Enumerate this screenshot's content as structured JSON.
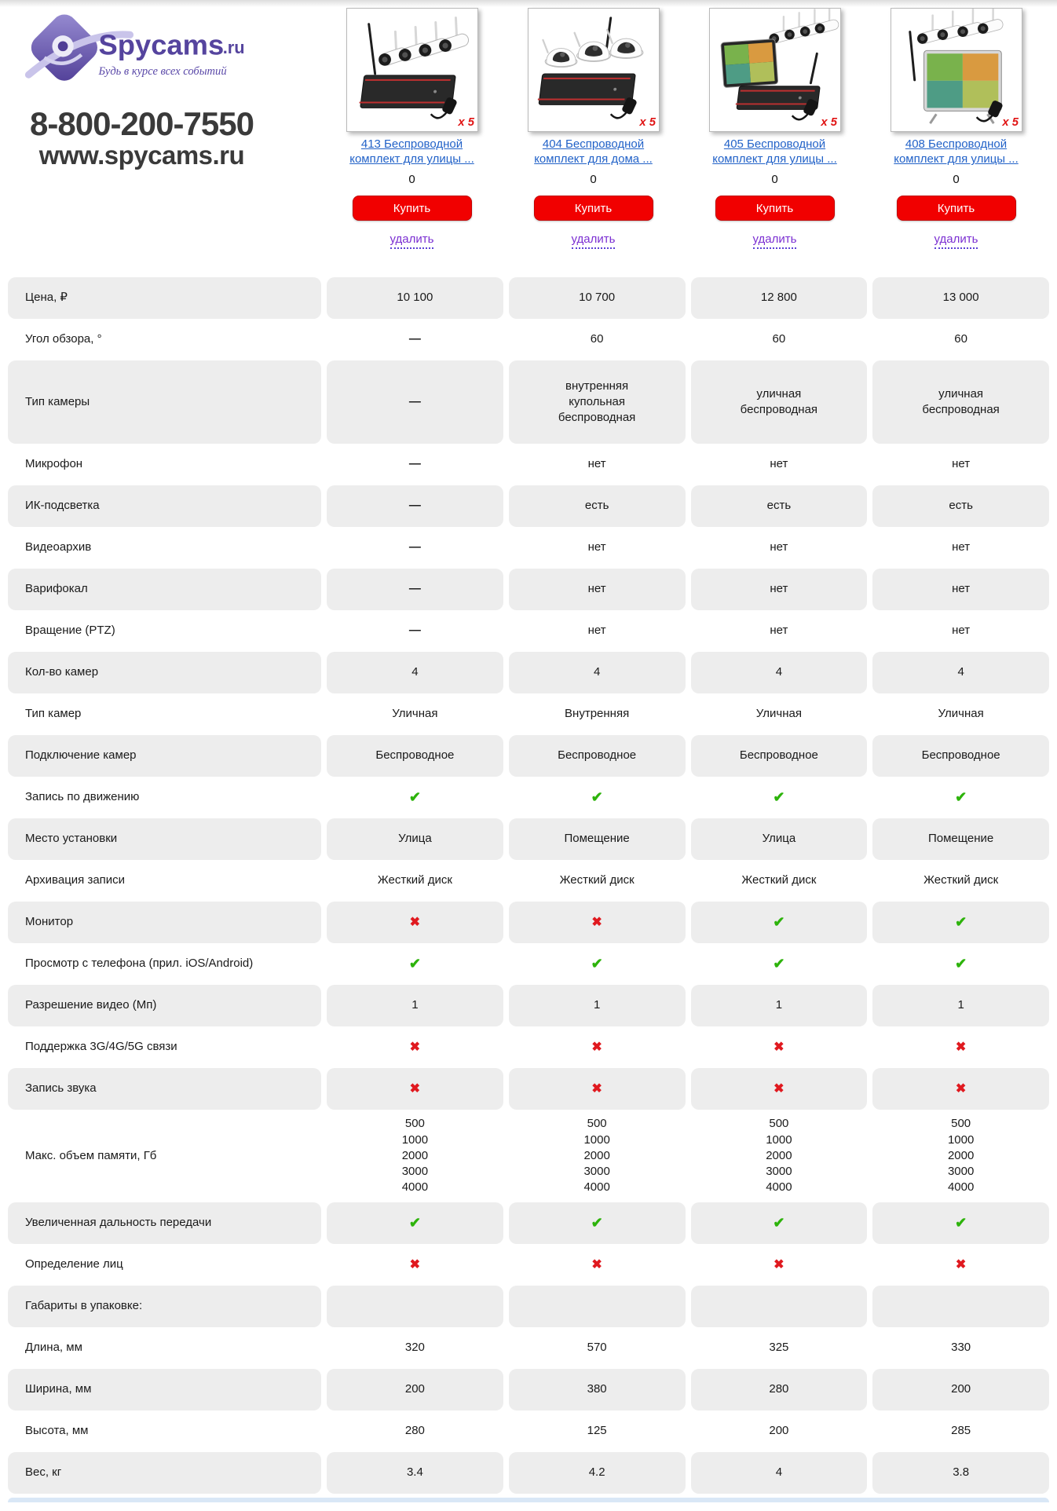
{
  "brand": {
    "name": "Spycams",
    "tld": ".ru",
    "tagline": "Будь в курсе всех событий",
    "phone": "8-800-200-7550",
    "site": "www.spycams.ru"
  },
  "actions": {
    "buy": "Купить",
    "remove": "удалить"
  },
  "products": [
    {
      "title_lines": [
        "413 Беспроводной",
        "комплект для улицы ..."
      ],
      "rating": "0",
      "badge": "x 5",
      "image": "nvr-bullet"
    },
    {
      "title_lines": [
        "404 Беспроводной",
        "комплект для дома ..."
      ],
      "rating": "0",
      "badge": "x 5",
      "image": "nvr-dome"
    },
    {
      "title_lines": [
        "405 Беспроводной",
        "комплект для улицы ..."
      ],
      "rating": "0",
      "badge": "x 5",
      "image": "monitor-bullet"
    },
    {
      "title_lines": [
        "408 Беспроводной",
        "комплект для улицы ..."
      ],
      "rating": "0",
      "badge": "x 5",
      "image": "monitor-stand"
    }
  ],
  "colors": {
    "accent_red": "#f10000",
    "link_blue": "#2262c8",
    "remove_purple": "#7b2fd2",
    "check_green": "#2db30b",
    "cross_red": "#e0191f",
    "row_gray": "#ededed",
    "sliver_blue": "#d9e7f6"
  },
  "table": {
    "rows": [
      {
        "label": "Цена, ₽",
        "values": [
          "10 100",
          "10 700",
          "12 800",
          "13 000"
        ]
      },
      {
        "label": "Угол обзора, °",
        "values": [
          "—",
          "60",
          "60",
          "60"
        ]
      },
      {
        "label": "Тип камеры",
        "values": [
          "—",
          [
            "внутренняя",
            "купольная",
            "беспроводная"
          ],
          [
            "уличная",
            "беспроводная"
          ],
          [
            "уличная",
            "беспроводная"
          ]
        ]
      },
      {
        "label": "Микрофон",
        "values": [
          "—",
          "нет",
          "нет",
          "нет"
        ]
      },
      {
        "label": "ИК-подсветка",
        "values": [
          "—",
          "есть",
          "есть",
          "есть"
        ]
      },
      {
        "label": "Видеоархив",
        "values": [
          "—",
          "нет",
          "нет",
          "нет"
        ]
      },
      {
        "label": "Варифокал",
        "values": [
          "—",
          "нет",
          "нет",
          "нет"
        ]
      },
      {
        "label": "Вращение (PTZ)",
        "values": [
          "—",
          "нет",
          "нет",
          "нет"
        ]
      },
      {
        "label": "Кол-во камер",
        "values": [
          "4",
          "4",
          "4",
          "4"
        ]
      },
      {
        "label": "Тип камер",
        "values": [
          "Уличная",
          "Внутренняя",
          "Уличная",
          "Уличная"
        ]
      },
      {
        "label": "Подключение камер",
        "values": [
          "Беспроводное",
          "Беспроводное",
          "Беспроводное",
          "Беспроводное"
        ]
      },
      {
        "label": "Запись по движению",
        "values": [
          "check",
          "check",
          "check",
          "check"
        ],
        "icons": true
      },
      {
        "label": "Место установки",
        "values": [
          "Улица",
          "Помещение",
          "Улица",
          "Помещение"
        ]
      },
      {
        "label": "Архивация записи",
        "values": [
          "Жесткий диск",
          "Жесткий диск",
          "Жесткий диск",
          "Жесткий диск"
        ]
      },
      {
        "label": "Монитор",
        "values": [
          "cross",
          "cross",
          "check",
          "check"
        ],
        "icons": true
      },
      {
        "label": "Просмотр с телефона (прил. iOS/Android)",
        "values": [
          "check",
          "check",
          "check",
          "check"
        ],
        "icons": true
      },
      {
        "label": "Разрешение видео (Мп)",
        "values": [
          "1",
          "1",
          "1",
          "1"
        ]
      },
      {
        "label": "Поддержка 3G/4G/5G связи",
        "values": [
          "cross",
          "cross",
          "cross",
          "cross"
        ],
        "icons": true
      },
      {
        "label": "Запись звука",
        "values": [
          "cross",
          "cross",
          "cross",
          "cross"
        ],
        "icons": true
      },
      {
        "label": "Макс. объем памяти, Гб",
        "values": [
          [
            "500",
            "1000",
            "2000",
            "3000",
            "4000"
          ],
          [
            "500",
            "1000",
            "2000",
            "3000",
            "4000"
          ],
          [
            "500",
            "1000",
            "2000",
            "3000",
            "4000"
          ],
          [
            "500",
            "1000",
            "2000",
            "3000",
            "4000"
          ]
        ]
      },
      {
        "label": "Увеличенная дальность передачи",
        "values": [
          "check",
          "check",
          "check",
          "check"
        ],
        "icons": true
      },
      {
        "label": "Определение лиц",
        "values": [
          "cross",
          "cross",
          "cross",
          "cross"
        ],
        "icons": true
      },
      {
        "label": "Габариты в упаковке:",
        "values": [
          "",
          "",
          "",
          ""
        ]
      },
      {
        "label": "Длина, мм",
        "values": [
          "320",
          "570",
          "325",
          "330"
        ]
      },
      {
        "label": "Ширина, мм",
        "values": [
          "200",
          "380",
          "280",
          "200"
        ]
      },
      {
        "label": "Высота, мм",
        "values": [
          "280",
          "125",
          "200",
          "285"
        ]
      },
      {
        "label": "Вес, кг",
        "values": [
          "3.4",
          "4.2",
          "4",
          "3.8"
        ]
      }
    ]
  }
}
